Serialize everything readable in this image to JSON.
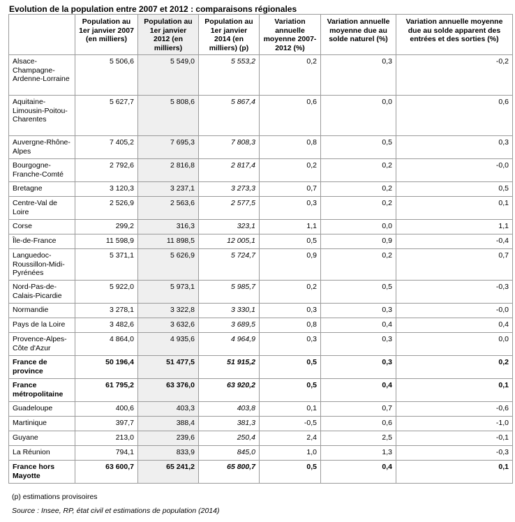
{
  "title": "Evolution de la population entre 2007 et 2012 : comparaisons régionales",
  "table": {
    "headers": [
      "",
      "Population au 1er janvier 2007 (en milliers)",
      "Population au 1er janvier 2012 (en milliers)",
      "Population au 1er janvier 2014 (en milliers) (p)",
      "Variation annuelle moyenne 2007-2012 (%)",
      "Variation annuelle moyenne due au solde naturel (%)",
      "Variation annuelle moyenne due au solde apparent des entrées et des sorties (%)"
    ],
    "rows": [
      {
        "region": "Alsace-Champagne-Ardenne-Lorraine",
        "pop2007": "5 506,6",
        "pop2012": "5 549,0",
        "pop2014": "5 553,2",
        "var": "0,2",
        "nat": "0,3",
        "mig": "-0,2"
      },
      {
        "region": "Aquitaine-Limousin-Poitou-Charentes",
        "pop2007": "5 627,7",
        "pop2012": "5 808,6",
        "pop2014": "5 867,4",
        "var": "0,6",
        "nat": "0,0",
        "mig": "0,6"
      },
      {
        "region": "Auvergne-Rhône-Alpes",
        "pop2007": "7 405,2",
        "pop2012": "7 695,3",
        "pop2014": "7 808,3",
        "var": "0,8",
        "nat": "0,5",
        "mig": "0,3"
      },
      {
        "region": "Bourgogne-Franche-Comté",
        "pop2007": "2 792,6",
        "pop2012": "2 816,8",
        "pop2014": "2 817,4",
        "var": "0,2",
        "nat": "0,2",
        "mig": "-0,0"
      },
      {
        "region": "Bretagne",
        "pop2007": "3 120,3",
        "pop2012": "3 237,1",
        "pop2014": "3 273,3",
        "var": "0,7",
        "nat": "0,2",
        "mig": "0,5"
      },
      {
        "region": "Centre-Val de Loire",
        "pop2007": "2 526,9",
        "pop2012": "2 563,6",
        "pop2014": "2 577,5",
        "var": "0,3",
        "nat": "0,2",
        "mig": "0,1"
      },
      {
        "region": "Corse",
        "pop2007": "299,2",
        "pop2012": "316,3",
        "pop2014": "323,1",
        "var": "1,1",
        "nat": "0,0",
        "mig": "1,1"
      },
      {
        "region": "Île-de-France",
        "pop2007": "11 598,9",
        "pop2012": "11 898,5",
        "pop2014": "12 005,1",
        "var": "0,5",
        "nat": "0,9",
        "mig": "-0,4"
      },
      {
        "region": "Languedoc-Roussillon-Midi-Pyrénées",
        "pop2007": "5 371,1",
        "pop2012": "5 626,9",
        "pop2014": "5 724,7",
        "var": "0,9",
        "nat": "0,2",
        "mig": "0,7"
      },
      {
        "region": "Nord-Pas-de-Calais-Picardie",
        "pop2007": "5 922,0",
        "pop2012": "5 973,1",
        "pop2014": "5 985,7",
        "var": "0,2",
        "nat": "0,5",
        "mig": "-0,3"
      },
      {
        "region": "Normandie",
        "pop2007": "3 278,1",
        "pop2012": "3 322,8",
        "pop2014": "3 330,1",
        "var": "0,3",
        "nat": "0,3",
        "mig": "-0,0"
      },
      {
        "region": "Pays de la Loire",
        "pop2007": "3 482,6",
        "pop2012": "3 632,6",
        "pop2014": "3 689,5",
        "var": "0,8",
        "nat": "0,4",
        "mig": "0,4"
      },
      {
        "region": "Provence-Alpes-Côte d'Azur",
        "pop2007": "4 864,0",
        "pop2012": "4 935,6",
        "pop2014": "4 964,9",
        "var": "0,3",
        "nat": "0,3",
        "mig": "0,0"
      },
      {
        "region": "France de province",
        "pop2007": "50 196,4",
        "pop2012": "51 477,5",
        "pop2014": "51 915,2",
        "var": "0,5",
        "nat": "0,3",
        "mig": "0,2",
        "bold": true
      },
      {
        "region": "France métropolitaine",
        "pop2007": "61 795,2",
        "pop2012": "63 376,0",
        "pop2014": "63 920,2",
        "var": "0,5",
        "nat": "0,4",
        "mig": "0,1",
        "bold": true
      },
      {
        "region": "Guadeloupe",
        "pop2007": "400,6",
        "pop2012": "403,3",
        "pop2014": "403,8",
        "var": "0,1",
        "nat": "0,7",
        "mig": "-0,6"
      },
      {
        "region": "Martinique",
        "pop2007": "397,7",
        "pop2012": "388,4",
        "pop2014": "381,3",
        "var": "-0,5",
        "nat": "0,6",
        "mig": "-1,0"
      },
      {
        "region": "Guyane",
        "pop2007": "213,0",
        "pop2012": "239,6",
        "pop2014": "250,4",
        "var": "2,4",
        "nat": "2,5",
        "mig": "-0,1"
      },
      {
        "region": "La Réunion",
        "pop2007": "794,1",
        "pop2012": "833,9",
        "pop2014": "845,0",
        "var": "1,0",
        "nat": "1,3",
        "mig": "-0,3"
      },
      {
        "region": "France hors Mayotte",
        "pop2007": "63 600,7",
        "pop2012": "65 241,2",
        "pop2014": "65 800,7",
        "var": "0,5",
        "nat": "0,4",
        "mig": "0,1",
        "bold": true
      }
    ]
  },
  "footnote": "(p) estimations provisoires",
  "source": "Source : Insee, RP, état civil et estimations de population (2014)"
}
